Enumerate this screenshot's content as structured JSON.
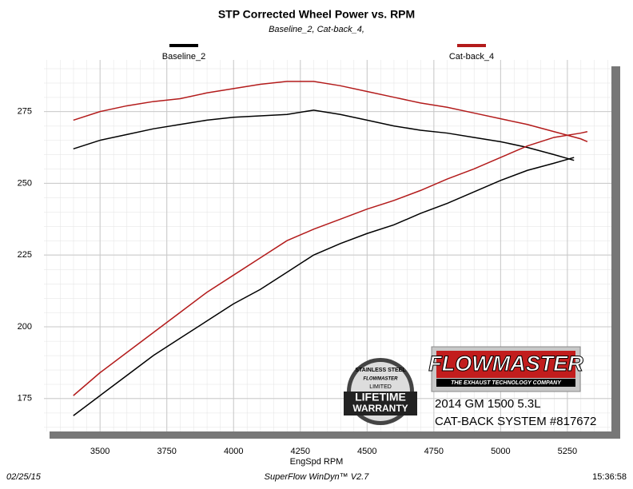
{
  "chart_data": {
    "type": "line",
    "title": "STP Corrected Wheel Power vs. RPM",
    "subtitle": "Baseline_2, Cat-back_4,",
    "x_label": "EngSpd RPM",
    "series": [
      {
        "name": "Baseline_2",
        "color": "#000000",
        "x": [
          3400,
          3500,
          3600,
          3700,
          3800,
          3900,
          4000,
          4100,
          4200,
          4300,
          4400,
          4500,
          4600,
          4700,
          4800,
          4900,
          5000,
          5100,
          5200,
          5275
        ],
        "values": [
          262,
          265,
          267,
          269,
          270.5,
          272,
          273,
          273.5,
          274,
          275.5,
          274,
          272,
          270,
          268.5,
          267.5,
          266,
          264.5,
          262.5,
          260,
          258
        ],
        "values2": [
          169,
          176,
          183,
          190,
          196,
          202,
          208,
          213,
          219,
          225,
          229,
          232.5,
          235.5,
          239.5,
          243,
          247,
          251,
          254.5,
          257,
          259
        ]
      },
      {
        "name": "Cat-back_4",
        "color": "#b31b1b",
        "x": [
          3400,
          3500,
          3600,
          3700,
          3800,
          3900,
          4000,
          4100,
          4200,
          4300,
          4400,
          4500,
          4600,
          4700,
          4800,
          4900,
          5000,
          5100,
          5200,
          5300,
          5325
        ],
        "values": [
          272,
          275,
          277,
          278.5,
          279.5,
          281.5,
          283,
          284.5,
          285.5,
          285.5,
          284,
          282,
          280,
          278,
          276.5,
          274.5,
          272.5,
          270.5,
          268,
          265.5,
          264.5
        ],
        "values2": [
          176,
          184,
          191,
          198,
          205,
          212,
          218,
          224,
          230,
          234,
          237.5,
          241,
          244,
          247.5,
          251.5,
          255,
          259,
          263,
          266,
          267.5,
          268
        ]
      }
    ],
    "xlim": [
      3290,
      5415
    ],
    "xticks": [
      3500,
      3750,
      4000,
      4250,
      4500,
      4750,
      5000,
      5250
    ],
    "ylim": [
      163.5,
      293
    ],
    "yticks": [
      175,
      200,
      225,
      250,
      275
    ],
    "grid": true
  },
  "footer": {
    "date": "02/25/15",
    "software": "SuperFlow WinDyn™ V2.7",
    "time": "15:36:58"
  },
  "logo": {
    "brand": "FLOWMASTER",
    "tagline": "THE EXHAUST TECHNOLOGY COMPANY",
    "vehicle": "2014 GM 1500 5.3L",
    "system": "CAT-BACK SYSTEM #817672"
  },
  "badge": {
    "arc": "STAINLESS STEEL",
    "brand": "FLOWMASTER",
    "limited": "LIMITED",
    "line1": "LIFETIME",
    "line2": "WARRANTY"
  }
}
